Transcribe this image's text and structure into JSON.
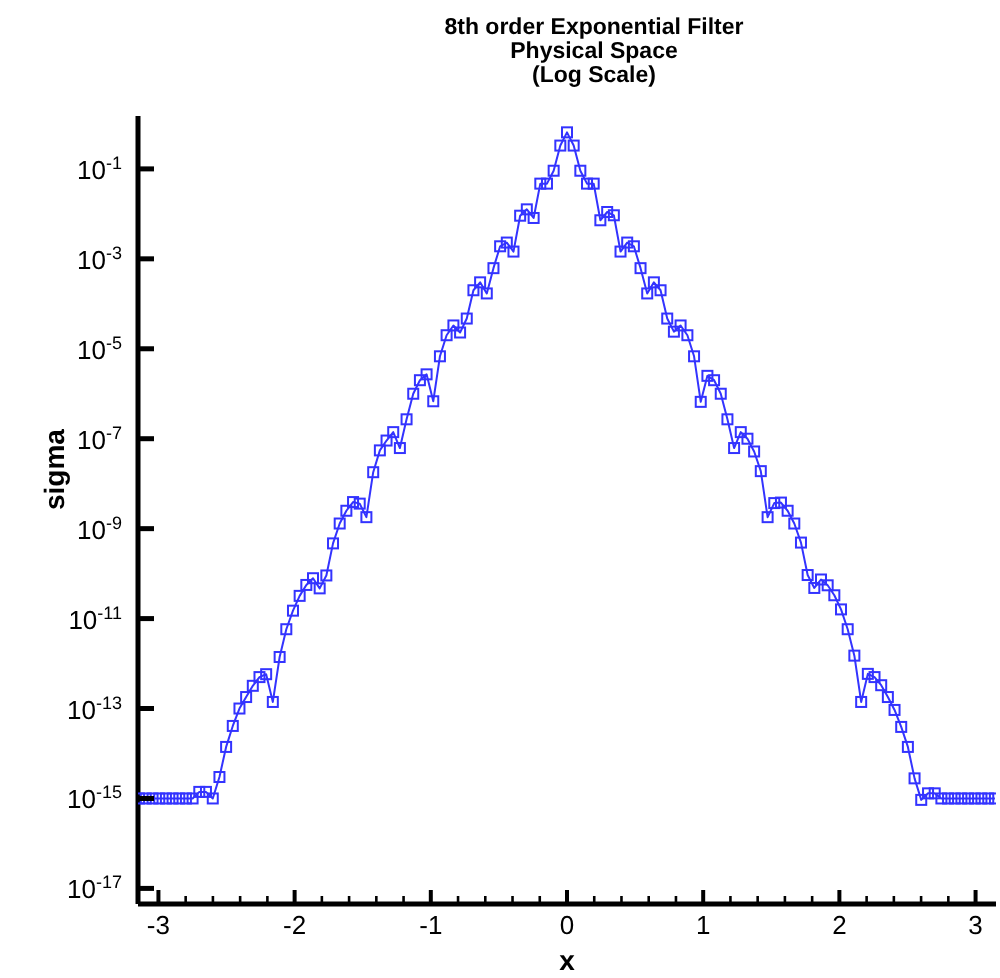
{
  "chart_data": {
    "type": "line",
    "title": "8th order Exponential Filter\nPhysical Space\n(Log Scale)",
    "xlabel": "x",
    "ylabel": "sigma",
    "log": "y",
    "marker": "square",
    "line_style": "solid",
    "xlim": [
      -3.15,
      3.15
    ],
    "xticks": [
      -3,
      {
        "value": -2.8,
        "label": null
      },
      {
        "value": -2.6,
        "label": null
      },
      {
        "value": -2.4,
        "label": null
      },
      {
        "value": -2.2,
        "label": null
      },
      -2,
      {
        "value": -1.8,
        "label": null
      },
      {
        "value": -1.6,
        "label": null
      },
      {
        "value": -1.4,
        "label": null
      },
      {
        "value": -1.2,
        "label": null
      },
      -1,
      {
        "value": -0.8,
        "label": null
      },
      {
        "value": -0.6,
        "label": null
      },
      {
        "value": -0.4,
        "label": null
      },
      {
        "value": -0.2,
        "label": null
      },
      0,
      {
        "value": 0.2,
        "label": null
      },
      {
        "value": 0.4,
        "label": null
      },
      {
        "value": 0.6,
        "label": null
      },
      {
        "value": 0.8,
        "label": null
      },
      1,
      {
        "value": 1.2,
        "label": null
      },
      {
        "value": 1.4,
        "label": null
      },
      {
        "value": 1.6,
        "label": null
      },
      {
        "value": 1.8,
        "label": null
      },
      2,
      {
        "value": 2.2,
        "label": null
      },
      {
        "value": 2.4,
        "label": null
      },
      {
        "value": 2.6,
        "label": null
      },
      {
        "value": 2.8,
        "label": null
      },
      3
    ],
    "ylim": [
      4.5e-18,
      1.5
    ],
    "yticks": [
      {
        "value": 1e-17,
        "label": "10$^{-17}$"
      },
      {
        "value": 1e-15,
        "label": "10$^{-15}$"
      },
      {
        "value": 1e-13,
        "label": "10$^{-13}$"
      },
      {
        "value": 1e-11,
        "label": "10$^{-11}$"
      },
      {
        "value": 1e-09,
        "label": "10$^{-9}$"
      },
      {
        "value": 1e-07,
        "label": "10$^{-7}$"
      },
      {
        "value": 1e-05,
        "label": "10$^{-5}$"
      },
      {
        "value": 0.001,
        "label": "10$^{-3}$"
      },
      {
        "value": 0.1,
        "label": "10$^{-1}$"
      }
    ],
    "x": [
      -3.142,
      -3.093,
      -3.043,
      -2.994,
      -2.945,
      -2.896,
      -2.847,
      -2.798,
      -2.749,
      -2.7,
      -2.651,
      -2.601,
      -2.552,
      -2.503,
      -2.454,
      -2.405,
      -2.356,
      -2.307,
      -2.258,
      -2.209,
      -2.16,
      -2.11,
      -2.061,
      -2.012,
      -1.963,
      -1.914,
      -1.865,
      -1.816,
      -1.767,
      -1.718,
      -1.669,
      -1.62,
      -1.571,
      -1.522,
      -1.473,
      -1.423,
      -1.374,
      -1.325,
      -1.276,
      -1.227,
      -1.178,
      -1.129,
      -1.08,
      -1.031,
      -0.982,
      -0.933,
      -0.884,
      -0.834,
      -0.785,
      -0.736,
      -0.687,
      -0.638,
      -0.589,
      -0.54,
      -0.491,
      -0.442,
      -0.393,
      -0.344,
      -0.295,
      -0.245,
      -0.196,
      -0.147,
      -0.098,
      -0.049,
      0,
      0.049,
      0.098,
      0.147,
      0.196,
      0.245,
      0.295,
      0.344,
      0.393,
      0.442,
      0.491,
      0.54,
      0.589,
      0.638,
      0.687,
      0.736,
      0.785,
      0.834,
      0.884,
      0.933,
      0.982,
      1.031,
      1.08,
      1.129,
      1.178,
      1.227,
      1.276,
      1.325,
      1.374,
      1.423,
      1.473,
      1.522,
      1.571,
      1.62,
      1.669,
      1.718,
      1.767,
      1.816,
      1.865,
      1.914,
      1.963,
      2.012,
      2.061,
      2.11,
      2.16,
      2.209,
      2.258,
      2.307,
      2.356,
      2.405,
      2.454,
      2.503,
      2.552,
      2.601,
      2.651,
      2.7,
      2.749,
      2.798,
      2.847,
      2.896,
      2.945,
      2.994,
      3.043,
      3.093,
      3.142
    ],
    "series": [
      {
        "color": "#3333ff",
        "values": [
          1e-15,
          1e-15,
          1e-15,
          1e-15,
          1e-15,
          1e-15,
          1e-15,
          1e-15,
          1e-15,
          1.4e-15,
          1.4e-15,
          1e-15,
          3e-15,
          1.4e-14,
          4.1e-14,
          1e-13,
          1.8e-13,
          3.2e-13,
          5e-13,
          5.8e-13,
          1.4e-13,
          1.4e-12,
          5.8e-12,
          1.5e-11,
          3.2e-11,
          5.6e-11,
          7.9e-11,
          4.7e-11,
          9.1e-11,
          4.7e-10,
          1.3e-09,
          2.5e-09,
          3.9e-09,
          3.6e-09,
          1.8e-09,
          1.8e-08,
          5.5e-08,
          9.1e-08,
          1.4e-07,
          6.2e-08,
          2.7e-07,
          1e-06,
          2e-06,
          2.7e-06,
          6.8e-07,
          6.8e-06,
          2e-05,
          3.3e-05,
          2.3e-05,
          4.7e-05,
          0.0002,
          0.0003,
          0.00017,
          0.00062,
          0.0019,
          0.0023,
          0.00145,
          0.0091,
          0.0126,
          0.0081,
          0.047,
          0.047,
          0.091,
          0.33,
          0.65,
          0.33,
          0.091,
          0.047,
          0.047,
          0.0072,
          0.011,
          0.0093,
          0.00145,
          0.0023,
          0.0019,
          0.00062,
          0.00017,
          0.0003,
          0.0002,
          4.7e-05,
          2.4e-05,
          3.3e-05,
          2e-05,
          6.8e-06,
          6.6e-07,
          2.5e-06,
          2e-06,
          1e-06,
          2.7e-07,
          6.2e-08,
          1.4e-07,
          1e-07,
          5.2e-08,
          1.9e-08,
          1.8e-09,
          3.7e-09,
          3.8e-09,
          2.5e-09,
          1.3e-09,
          4.9e-10,
          9.3e-11,
          4.8e-11,
          7.4e-11,
          5.5e-11,
          3.3e-11,
          1.6e-11,
          5.8e-12,
          1.5e-12,
          1.4e-13,
          5.9e-13,
          5e-13,
          3.3e-13,
          1.8e-13,
          9.3e-14,
          3.9e-14,
          1.4e-14,
          2.8e-15,
          9.3e-16,
          1.3e-15,
          1.3e-15,
          1e-15,
          1e-15,
          1e-15,
          1e-15,
          1e-15,
          1e-15,
          1e-15,
          1e-15,
          1e-15
        ]
      }
    ]
  }
}
